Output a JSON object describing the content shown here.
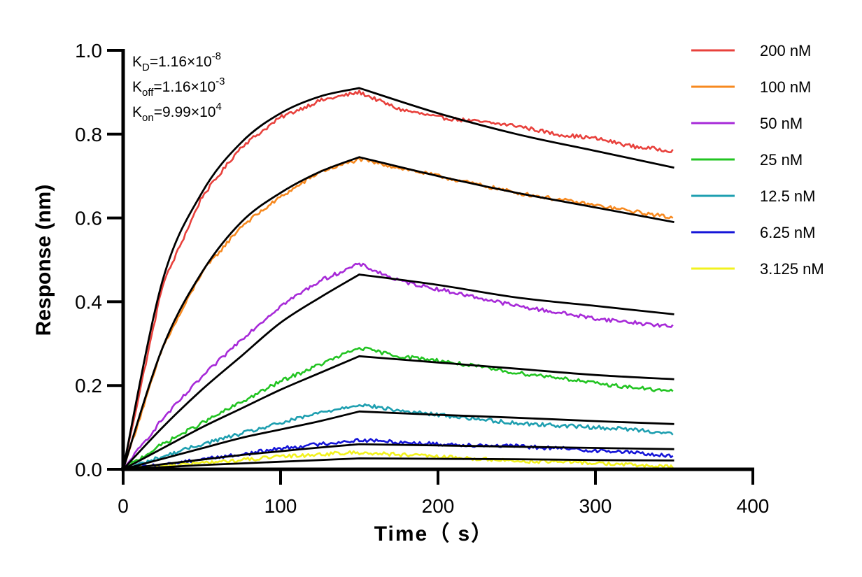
{
  "chart_data": {
    "type": "line",
    "xlabel": "Time（ s）",
    "ylabel": "Response (nm)",
    "xlim": [
      0,
      400
    ],
    "ylim": [
      0,
      1.0
    ],
    "x_ticks": [
      "0",
      "100",
      "200",
      "300",
      "400"
    ],
    "y_ticks": [
      "0.0",
      "0.2",
      "0.4",
      "0.6",
      "0.8",
      "1.0"
    ],
    "grid": false,
    "legend_position": "top-right",
    "annotations": [
      {
        "base": "K",
        "sub": "D",
        "rest": "=1.16×10",
        "sup": "-8"
      },
      {
        "base": "K",
        "sub": "off",
        "rest": "=1.16×10",
        "sup": "-3"
      },
      {
        "base": "K",
        "sub": "on",
        "rest": "=9.99×10",
        "sup": "4"
      }
    ],
    "fit_color": "#000000",
    "association_end": 150,
    "dissociation_end": 350,
    "series": [
      {
        "name": "200 nM",
        "color": "#e8413c",
        "measured": [
          [
            0,
            0
          ],
          [
            25,
            0.44
          ],
          [
            50,
            0.65
          ],
          [
            75,
            0.77
          ],
          [
            100,
            0.84
          ],
          [
            125,
            0.88
          ],
          [
            150,
            0.9
          ],
          [
            175,
            0.86
          ],
          [
            200,
            0.84
          ],
          [
            225,
            0.83
          ],
          [
            250,
            0.82
          ],
          [
            275,
            0.8
          ],
          [
            300,
            0.79
          ],
          [
            325,
            0.77
          ],
          [
            350,
            0.76
          ]
        ],
        "fit": [
          [
            0,
            0
          ],
          [
            25,
            0.45
          ],
          [
            50,
            0.66
          ],
          [
            75,
            0.78
          ],
          [
            100,
            0.85
          ],
          [
            125,
            0.89
          ],
          [
            150,
            0.91
          ],
          [
            200,
            0.85
          ],
          [
            250,
            0.8
          ],
          [
            300,
            0.76
          ],
          [
            350,
            0.72
          ]
        ]
      },
      {
        "name": "100 nM",
        "color": "#f7891f",
        "measured": [
          [
            0,
            0
          ],
          [
            25,
            0.29
          ],
          [
            50,
            0.47
          ],
          [
            75,
            0.58
          ],
          [
            100,
            0.65
          ],
          [
            125,
            0.71
          ],
          [
            150,
            0.74
          ],
          [
            175,
            0.72
          ],
          [
            200,
            0.7
          ],
          [
            225,
            0.68
          ],
          [
            250,
            0.66
          ],
          [
            275,
            0.645
          ],
          [
            300,
            0.63
          ],
          [
            325,
            0.615
          ],
          [
            350,
            0.6
          ]
        ],
        "fit": [
          [
            0,
            0
          ],
          [
            25,
            0.29
          ],
          [
            50,
            0.47
          ],
          [
            75,
            0.59
          ],
          [
            100,
            0.66
          ],
          [
            125,
            0.71
          ],
          [
            150,
            0.745
          ],
          [
            200,
            0.7
          ],
          [
            250,
            0.66
          ],
          [
            300,
            0.625
          ],
          [
            350,
            0.59
          ]
        ]
      },
      {
        "name": "50 nM",
        "color": "#a72ad8",
        "measured": [
          [
            0,
            0
          ],
          [
            25,
            0.12
          ],
          [
            50,
            0.22
          ],
          [
            75,
            0.31
          ],
          [
            100,
            0.39
          ],
          [
            125,
            0.45
          ],
          [
            150,
            0.49
          ],
          [
            175,
            0.45
          ],
          [
            200,
            0.43
          ],
          [
            225,
            0.41
          ],
          [
            250,
            0.39
          ],
          [
            275,
            0.375
          ],
          [
            300,
            0.36
          ],
          [
            325,
            0.35
          ],
          [
            350,
            0.34
          ]
        ],
        "fit": [
          [
            0,
            0
          ],
          [
            25,
            0.1
          ],
          [
            50,
            0.19
          ],
          [
            75,
            0.27
          ],
          [
            100,
            0.35
          ],
          [
            125,
            0.41
          ],
          [
            150,
            0.465
          ],
          [
            200,
            0.44
          ],
          [
            250,
            0.41
          ],
          [
            300,
            0.39
          ],
          [
            350,
            0.37
          ]
        ]
      },
      {
        "name": "25 nM",
        "color": "#22c422",
        "measured": [
          [
            0,
            0
          ],
          [
            25,
            0.06
          ],
          [
            50,
            0.11
          ],
          [
            75,
            0.16
          ],
          [
            100,
            0.21
          ],
          [
            125,
            0.25
          ],
          [
            150,
            0.29
          ],
          [
            175,
            0.27
          ],
          [
            200,
            0.26
          ],
          [
            225,
            0.245
          ],
          [
            250,
            0.23
          ],
          [
            275,
            0.22
          ],
          [
            300,
            0.205
          ],
          [
            325,
            0.195
          ],
          [
            350,
            0.185
          ]
        ],
        "fit": [
          [
            0,
            0
          ],
          [
            25,
            0.05
          ],
          [
            50,
            0.1
          ],
          [
            75,
            0.145
          ],
          [
            100,
            0.19
          ],
          [
            125,
            0.23
          ],
          [
            150,
            0.27
          ],
          [
            200,
            0.255
          ],
          [
            250,
            0.24
          ],
          [
            300,
            0.225
          ],
          [
            350,
            0.215
          ]
        ]
      },
      {
        "name": "12.5 nM",
        "color": "#1e9fb0",
        "measured": [
          [
            0,
            0
          ],
          [
            25,
            0.03
          ],
          [
            50,
            0.06
          ],
          [
            75,
            0.085
          ],
          [
            100,
            0.11
          ],
          [
            125,
            0.135
          ],
          [
            150,
            0.155
          ],
          [
            175,
            0.14
          ],
          [
            200,
            0.13
          ],
          [
            225,
            0.12
          ],
          [
            250,
            0.11
          ],
          [
            275,
            0.105
          ],
          [
            300,
            0.1
          ],
          [
            325,
            0.095
          ],
          [
            350,
            0.085
          ]
        ],
        "fit": [
          [
            0,
            0
          ],
          [
            25,
            0.025
          ],
          [
            50,
            0.05
          ],
          [
            75,
            0.075
          ],
          [
            100,
            0.095
          ],
          [
            125,
            0.115
          ],
          [
            150,
            0.138
          ],
          [
            200,
            0.13
          ],
          [
            250,
            0.123
          ],
          [
            300,
            0.115
          ],
          [
            350,
            0.108
          ]
        ]
      },
      {
        "name": "6.25 nM",
        "color": "#1515d8",
        "measured": [
          [
            0,
            0
          ],
          [
            25,
            0.01
          ],
          [
            50,
            0.025
          ],
          [
            75,
            0.035
          ],
          [
            100,
            0.05
          ],
          [
            125,
            0.06
          ],
          [
            150,
            0.07
          ],
          [
            175,
            0.065
          ],
          [
            200,
            0.06
          ],
          [
            225,
            0.058
          ],
          [
            250,
            0.055
          ],
          [
            275,
            0.05
          ],
          [
            300,
            0.045
          ],
          [
            325,
            0.04
          ],
          [
            350,
            0.03
          ]
        ],
        "fit": [
          [
            0,
            0
          ],
          [
            25,
            0.012
          ],
          [
            50,
            0.023
          ],
          [
            75,
            0.034
          ],
          [
            100,
            0.043
          ],
          [
            125,
            0.052
          ],
          [
            150,
            0.06
          ],
          [
            200,
            0.057
          ],
          [
            250,
            0.054
          ],
          [
            300,
            0.051
          ],
          [
            350,
            0.048
          ]
        ]
      },
      {
        "name": "3.125 nM",
        "color": "#f2f21e",
        "measured": [
          [
            0,
            0
          ],
          [
            25,
            0.008
          ],
          [
            50,
            0.015
          ],
          [
            75,
            0.022
          ],
          [
            100,
            0.03
          ],
          [
            125,
            0.036
          ],
          [
            150,
            0.04
          ],
          [
            175,
            0.035
          ],
          [
            200,
            0.03
          ],
          [
            225,
            0.025
          ],
          [
            250,
            0.02
          ],
          [
            275,
            0.018
          ],
          [
            300,
            0.015
          ],
          [
            325,
            0.01
          ],
          [
            350,
            0.005
          ]
        ],
        "fit": [
          [
            0,
            0
          ],
          [
            25,
            0.005
          ],
          [
            50,
            0.01
          ],
          [
            75,
            0.014
          ],
          [
            100,
            0.018
          ],
          [
            125,
            0.022
          ],
          [
            150,
            0.026
          ],
          [
            200,
            0.025
          ],
          [
            250,
            0.024
          ],
          [
            300,
            0.022
          ],
          [
            350,
            0.021
          ]
        ]
      }
    ]
  }
}
